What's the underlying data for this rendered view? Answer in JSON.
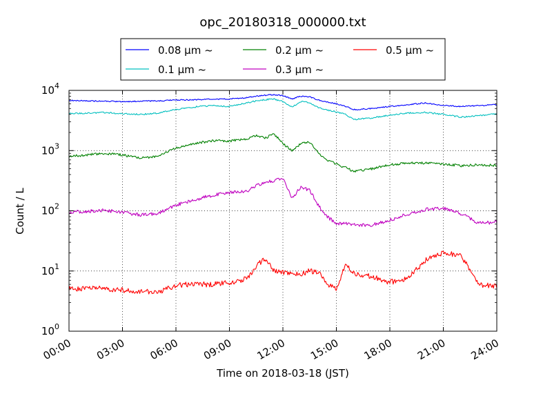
{
  "chart_data": {
    "type": "line",
    "title": "opc_20180318_000000.txt",
    "xlabel": "Time on 2018-03-18 (JST)",
    "ylabel": "Count / L",
    "yscale": "log",
    "ylim": [
      1,
      10000
    ],
    "xlim": [
      "00:00",
      "24:00"
    ],
    "grid": true,
    "legend_position": "top",
    "x_tick_labels": [
      "00:00",
      "03:00",
      "06:00",
      "09:00",
      "12:00",
      "15:00",
      "18:00",
      "21:00",
      "24:00"
    ],
    "y_tick_labels": [
      {
        "base": "10",
        "exp": "0"
      },
      {
        "base": "10",
        "exp": "1"
      },
      {
        "base": "10",
        "exp": "2"
      },
      {
        "base": "10",
        "exp": "3"
      },
      {
        "base": "10",
        "exp": "4"
      }
    ],
    "x": [
      "00:00",
      "01:00",
      "02:00",
      "03:00",
      "04:00",
      "05:00",
      "06:00",
      "07:00",
      "08:00",
      "09:00",
      "10:00",
      "10:30",
      "11:00",
      "11:30",
      "12:00",
      "12:30",
      "13:00",
      "13:30",
      "14:00",
      "14:30",
      "15:00",
      "15:30",
      "16:00",
      "17:00",
      "18:00",
      "19:00",
      "20:00",
      "21:00",
      "22:00",
      "23:00",
      "24:00"
    ],
    "series": [
      {
        "name": "0.08 μm ~",
        "color": "#0000ff",
        "values": [
          6800,
          6700,
          6600,
          6500,
          6600,
          6700,
          6900,
          7000,
          7100,
          7200,
          7600,
          8000,
          8300,
          8500,
          8200,
          7200,
          8000,
          7800,
          6900,
          6400,
          6000,
          5400,
          4800,
          5000,
          5400,
          5800,
          6200,
          5600,
          5400,
          5600,
          5800
        ]
      },
      {
        "name": "0.1 μm ~",
        "color": "#00bfbf",
        "values": [
          4100,
          4200,
          4300,
          4100,
          4000,
          4200,
          4800,
          5300,
          5600,
          5400,
          6200,
          6700,
          7000,
          7200,
          6500,
          5300,
          6500,
          6300,
          5200,
          4700,
          4400,
          4000,
          3300,
          3500,
          3900,
          4200,
          4300,
          4000,
          3600,
          3800,
          4100
        ]
      },
      {
        "name": "0.2 μm ~",
        "color": "#008000",
        "values": [
          800,
          850,
          900,
          850,
          750,
          800,
          1100,
          1300,
          1450,
          1450,
          1550,
          1800,
          1600,
          1900,
          1300,
          1000,
          1300,
          1400,
          900,
          700,
          600,
          520,
          450,
          500,
          580,
          620,
          620,
          600,
          560,
          580,
          570
        ]
      },
      {
        "name": "0.3 μm ~",
        "color": "#bf00bf",
        "values": [
          95,
          98,
          102,
          95,
          85,
          90,
          125,
          150,
          180,
          200,
          210,
          260,
          300,
          320,
          350,
          160,
          250,
          220,
          120,
          80,
          60,
          62,
          58,
          58,
          70,
          88,
          105,
          110,
          90,
          62,
          65
        ]
      },
      {
        "name": "0.5 μm ~",
        "color": "#ff0000",
        "values": [
          5,
          5.2,
          5.1,
          4.8,
          4.6,
          4.4,
          5.8,
          6,
          6,
          6.3,
          7.5,
          12,
          16,
          10,
          9.5,
          9,
          9,
          10,
          9.5,
          6,
          5,
          13,
          9,
          8,
          6.5,
          7.5,
          15,
          20,
          18,
          6,
          5.5
        ]
      }
    ]
  }
}
